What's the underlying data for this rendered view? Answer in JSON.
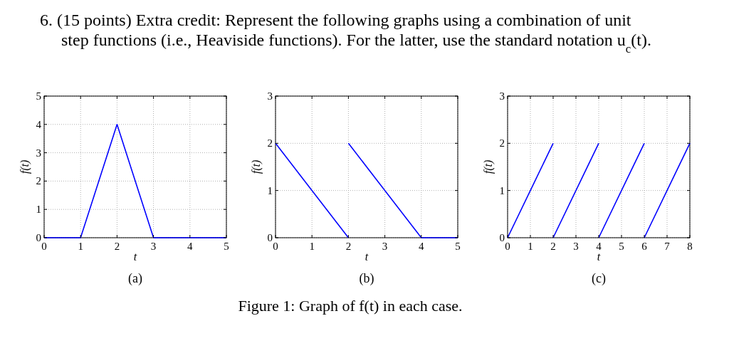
{
  "chart_data": [
    {
      "type": "line",
      "title": "6. (15 points) Extra credit: Represent the following graphs using a combination of unit step functions (i.e., Heaviside functions). For the latter, use the standard notation u$_{c}$(t).",
      "xlabel": "t",
      "ylabel": "f(t)",
      "annotations": [
        "(a)",
        "Figure 1: Graph of f(t) in each case."
      ],
      "x": [
        0,
        1,
        2,
        3,
        5
      ],
      "series": [
        {
          "color": "#0000ff",
          "values": [
            0,
            0,
            4,
            0,
            0
          ]
        }
      ],
      "xlim": [
        0,
        5
      ],
      "ylim": [
        0,
        5
      ],
      "xticks": [
        0,
        1,
        2,
        3,
        4,
        5
      ],
      "yticks": [
        0,
        1,
        2,
        3,
        4,
        5
      ],
      "grid": true
    },
    {
      "type": "line",
      "xlabel": "t",
      "ylabel": "f(t)",
      "annotations": [
        "(b)"
      ],
      "series": [
        {
          "color": "#0000ff",
          "x": [
            0,
            2
          ],
          "values": [
            2,
            0
          ]
        },
        {
          "color": "#0000ff",
          "x": [
            2,
            4,
            5
          ],
          "values": [
            2,
            0,
            0
          ]
        }
      ],
      "xlim": [
        0,
        5
      ],
      "ylim": [
        0,
        3
      ],
      "xticks": [
        0,
        1,
        2,
        3,
        4,
        5
      ],
      "yticks": [
        0,
        1,
        2,
        3
      ],
      "grid": true
    },
    {
      "type": "line",
      "xlabel": "t",
      "ylabel": "f(t)",
      "annotations": [
        "(c)"
      ],
      "series": [
        {
          "color": "#0000ff",
          "x": [
            0,
            2
          ],
          "values": [
            0,
            2
          ]
        },
        {
          "color": "#0000ff",
          "x": [
            2,
            4
          ],
          "values": [
            0,
            2
          ]
        },
        {
          "color": "#0000ff",
          "x": [
            4,
            6
          ],
          "values": [
            0,
            2
          ]
        },
        {
          "color": "#0000ff",
          "x": [
            6,
            8
          ],
          "values": [
            0,
            2
          ]
        }
      ],
      "xlim": [
        0,
        8
      ],
      "ylim": [
        0,
        3
      ],
      "xticks": [
        0,
        1,
        2,
        3,
        4,
        5,
        6,
        7,
        8
      ],
      "yticks": [
        0,
        1,
        2,
        3
      ],
      "grid": true
    }
  ]
}
